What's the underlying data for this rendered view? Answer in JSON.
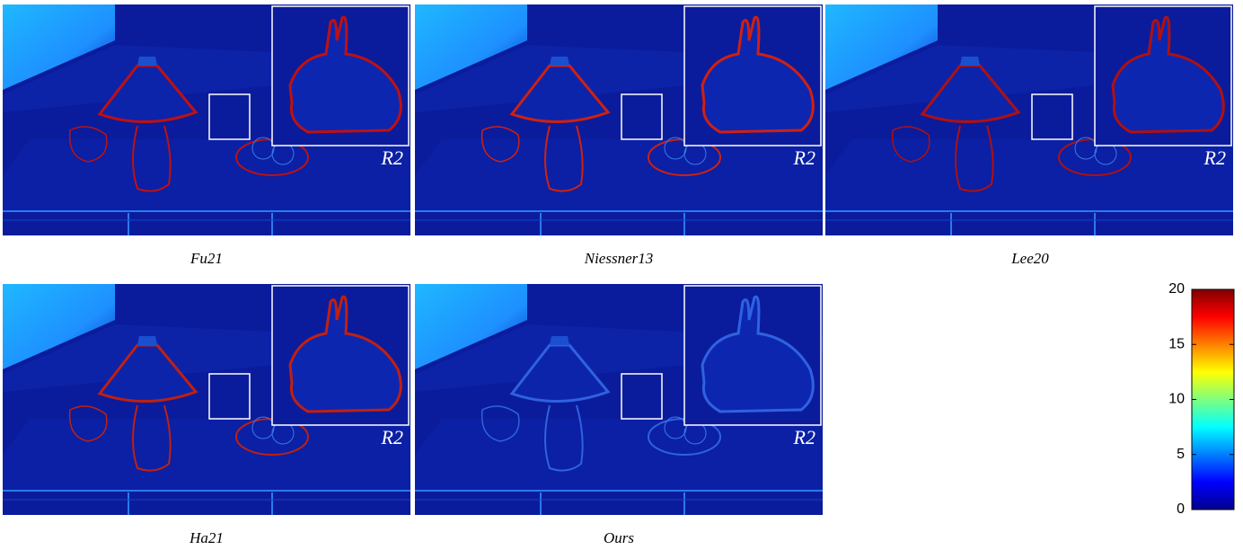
{
  "figure": {
    "panels": [
      {
        "caption": "Fu21",
        "inset_label": "R2"
      },
      {
        "caption": "Niessner13",
        "inset_label": "R2"
      },
      {
        "caption": "Lee20",
        "inset_label": "R2"
      },
      {
        "caption": "Ha21",
        "inset_label": "R2"
      },
      {
        "caption": "Ours",
        "inset_label": "R2"
      }
    ],
    "colorbar": {
      "range": [
        0,
        20
      ],
      "ticks": [
        0,
        5,
        10,
        15,
        20
      ]
    }
  }
}
